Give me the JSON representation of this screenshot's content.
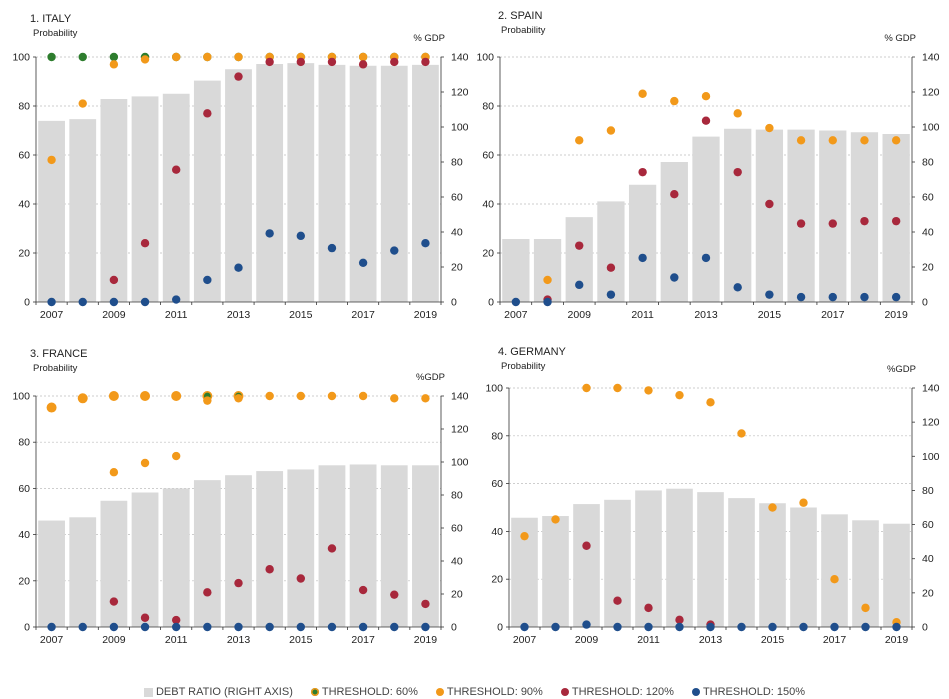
{
  "colors": {
    "debt_bar": "#d9d9d9",
    "t60": "#2e7d2e",
    "t90": "#f2991a",
    "t120": "#a8283c",
    "t150": "#1f4e8c",
    "outline": "#f2991a"
  },
  "legend": [
    {
      "label": "DEBT RATIO (RIGHT AXIS)",
      "key": "debt_bar"
    },
    {
      "label": "THRESHOLD: 60%",
      "key": "t60"
    },
    {
      "label": "THRESHOLD: 90%",
      "key": "t90"
    },
    {
      "label": "THRESHOLD: 120%",
      "key": "t120"
    },
    {
      "label": "THRESHOLD: 150%",
      "key": "t150"
    }
  ],
  "chart_data": [
    {
      "type": "bar",
      "title": "1. ITALY",
      "ylabel": "Probability",
      "y2label": "% GDP",
      "ylim": [
        0,
        100
      ],
      "y2lim": [
        0,
        140
      ],
      "yticks": [
        0,
        20,
        40,
        60,
        80,
        100
      ],
      "y2ticks": [
        0,
        20,
        40,
        60,
        80,
        100,
        120,
        140
      ],
      "categories": [
        "2007",
        "2008",
        "2009",
        "2010",
        "2011",
        "2012",
        "2013",
        "2014",
        "2015",
        "2016",
        "2017",
        "2018",
        "2019"
      ],
      "xticklabels": [
        "2007",
        "",
        "2009",
        "",
        "2011",
        "",
        "2013",
        "",
        "2015",
        "",
        "2017",
        "",
        "2019"
      ],
      "series": [
        {
          "name": "DEBT RATIO (RIGHT AXIS)",
          "kind": "bar",
          "axis": "right",
          "values": [
            103.5,
            104.5,
            116,
            117.5,
            119,
            126.5,
            133,
            136,
            136.5,
            135.5,
            135,
            135,
            135.5
          ]
        },
        {
          "name": "THRESHOLD: 60%",
          "kind": "dot",
          "colorKey": "t60",
          "values": [
            100,
            100,
            100,
            100,
            100,
            100,
            100,
            100,
            100,
            100,
            100,
            100,
            100
          ]
        },
        {
          "name": "THRESHOLD: 90%",
          "kind": "dot",
          "colorKey": "t90",
          "values": [
            58,
            81,
            97,
            99,
            100,
            100,
            100,
            100,
            100,
            100,
            100,
            100,
            100
          ]
        },
        {
          "name": "THRESHOLD: 120%",
          "kind": "dot",
          "colorKey": "t120",
          "values": null
        },
        {
          "name": "THRESHOLD: 150%",
          "kind": "dot",
          "colorKey": "t150",
          "values": [
            0,
            0,
            0,
            0,
            1,
            9,
            14,
            28,
            27,
            22,
            16,
            21,
            24
          ]
        }
      ],
      "t120_values": [
        null,
        null,
        9,
        24,
        54,
        77,
        92,
        98,
        98,
        98,
        97,
        98,
        98
      ]
    },
    {
      "type": "bar",
      "title": "2. SPAIN",
      "ylabel": "Probability",
      "y2label": "% GDP",
      "ylim": [
        0,
        100
      ],
      "y2lim": [
        0,
        140
      ],
      "yticks": [
        0,
        20,
        40,
        60,
        80,
        100
      ],
      "y2ticks": [
        0,
        20,
        40,
        60,
        80,
        100,
        120,
        140
      ],
      "categories": [
        "2007",
        "2008",
        "2009",
        "2010",
        "2011",
        "2012",
        "2013",
        "2014",
        "2015",
        "2016",
        "2017",
        "2018",
        "2019"
      ],
      "xticklabels": [
        "2007",
        "",
        "2009",
        "",
        "2011",
        "",
        "2013",
        "",
        "2015",
        "",
        "2017",
        "",
        "2019"
      ],
      "series": [
        {
          "name": "DEBT RATIO (RIGHT AXIS)",
          "kind": "bar",
          "axis": "right",
          "values": [
            36,
            36,
            48.5,
            57.5,
            67,
            80,
            94.5,
            99,
            98.5,
            98.5,
            98,
            97,
            96
          ]
        },
        {
          "name": "THRESHOLD: 60%",
          "kind": "dot",
          "colorKey": "t60",
          "values": null
        },
        {
          "name": "THRESHOLD: 90%",
          "kind": "dot",
          "colorKey": "t90",
          "values": [
            null,
            9,
            66,
            70,
            85,
            82,
            84,
            77,
            71,
            66,
            66,
            66,
            66
          ]
        },
        {
          "name": "THRESHOLD: 120%",
          "kind": "dot",
          "colorKey": "t120",
          "values": [
            null,
            1,
            23,
            14,
            53,
            44,
            74,
            53,
            40,
            32,
            32,
            33,
            33
          ]
        },
        {
          "name": "THRESHOLD: 150%",
          "kind": "dot",
          "colorKey": "t150",
          "values": [
            0,
            0,
            7,
            3,
            18,
            10,
            18,
            6,
            3,
            2,
            2,
            2,
            2
          ]
        }
      ]
    },
    {
      "type": "bar",
      "title": "3. FRANCE",
      "ylabel": "Probability",
      "y2label": "%GDP",
      "ylim": [
        0,
        100
      ],
      "y2lim": [
        0,
        140
      ],
      "yticks": [
        0,
        20,
        40,
        60,
        80,
        100
      ],
      "y2ticks": [
        0,
        20,
        40,
        60,
        80,
        100,
        120,
        140
      ],
      "categories": [
        "2007",
        "2008",
        "2009",
        "2010",
        "2011",
        "2012",
        "2013",
        "2014",
        "2015",
        "2016",
        "2017",
        "2018",
        "2019"
      ],
      "xticklabels": [
        "2007",
        "",
        "2009",
        "",
        "2011",
        "",
        "2013",
        "",
        "2015",
        "",
        "2017",
        "",
        "2019"
      ],
      "series": [
        {
          "name": "DEBT RATIO (RIGHT AXIS)",
          "kind": "bar",
          "axis": "right",
          "values": [
            64.5,
            66.5,
            76.5,
            81.5,
            84,
            89,
            92,
            94.5,
            95.5,
            98,
            98.5,
            98,
            98
          ]
        },
        {
          "name": "THRESHOLD: 60%",
          "kind": "ring",
          "colorKey": "t60",
          "values": [
            95,
            99,
            100,
            100,
            100,
            100,
            100,
            null,
            null,
            null,
            null,
            null,
            null
          ]
        },
        {
          "name": "THRESHOLD: 90%",
          "kind": "dot",
          "colorKey": "t90",
          "values": [
            95,
            99,
            100,
            100,
            100,
            98,
            99,
            100,
            100,
            100,
            100,
            99,
            99
          ]
        },
        {
          "name": "THRESHOLD: 120%",
          "kind": "dot",
          "colorKey": "t120",
          "values": [
            null,
            null,
            11,
            4,
            3,
            15,
            19,
            25,
            21,
            34,
            16,
            14,
            10
          ]
        },
        {
          "name": "THRESHOLD: 150%",
          "kind": "dot",
          "colorKey": "t150",
          "values": [
            0,
            0,
            0,
            0,
            0,
            0,
            0,
            0,
            0,
            0,
            0,
            0,
            0
          ]
        }
      ],
      "t90_extra": [
        null,
        null,
        67,
        71,
        74,
        null,
        null,
        null,
        null,
        null,
        null,
        null,
        null
      ]
    },
    {
      "type": "bar",
      "title": "4. GERMANY",
      "ylabel": "Probability",
      "y2label": "%GDP",
      "ylim": [
        0,
        100
      ],
      "y2lim": [
        0,
        140
      ],
      "yticks": [
        0,
        20,
        40,
        60,
        80,
        100
      ],
      "y2ticks": [
        0,
        20,
        40,
        60,
        80,
        100,
        120,
        140
      ],
      "categories": [
        "2007",
        "2008",
        "2009",
        "2010",
        "2011",
        "2012",
        "2013",
        "2014",
        "2015",
        "2016",
        "2017",
        "2018",
        "2019"
      ],
      "xticklabels": [
        "2007",
        "",
        "2009",
        "",
        "2011",
        "",
        "2013",
        "",
        "2015",
        "",
        "2017",
        "",
        "2019"
      ],
      "series": [
        {
          "name": "DEBT RATIO (RIGHT AXIS)",
          "kind": "bar",
          "axis": "right",
          "values": [
            64,
            65,
            72,
            74.5,
            80,
            81,
            79,
            75.5,
            72.5,
            70,
            66,
            62.5,
            60.5
          ]
        },
        {
          "name": "THRESHOLD: 60%",
          "kind": "dot",
          "colorKey": "t60",
          "values": null
        },
        {
          "name": "THRESHOLD: 90%",
          "kind": "dot",
          "colorKey": "t90",
          "values": [
            38,
            45,
            100,
            100,
            99,
            97,
            94,
            81,
            50,
            52,
            20,
            8,
            2
          ]
        },
        {
          "name": "THRESHOLD: 120%",
          "kind": "dot",
          "colorKey": "t120",
          "values": [
            null,
            null,
            34,
            11,
            8,
            3,
            1,
            null,
            null,
            null,
            null,
            null,
            null
          ]
        },
        {
          "name": "THRESHOLD: 150%",
          "kind": "dot",
          "colorKey": "t150",
          "values": [
            0,
            0,
            1,
            0,
            0,
            0,
            0,
            0,
            0,
            0,
            0,
            0,
            0
          ]
        }
      ]
    }
  ]
}
